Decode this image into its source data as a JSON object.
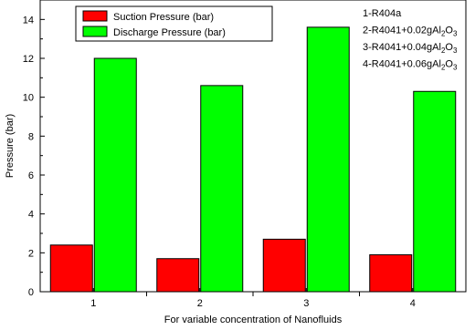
{
  "chart_data": {
    "type": "bar",
    "title": "",
    "xlabel": "For variable concentration of Nanofluids",
    "ylabel": "Pressure (bar)",
    "categories": [
      "1",
      "2",
      "3",
      "4"
    ],
    "ylim": [
      0,
      15
    ],
    "yticks": [
      0,
      2,
      4,
      6,
      8,
      10,
      12,
      14
    ],
    "grid": false,
    "legend_position": "top-left",
    "series": [
      {
        "name": "Suction Pressure (bar)",
        "color": "#ff0000",
        "values": [
          2.4,
          1.7,
          2.7,
          1.9
        ]
      },
      {
        "name": "Discharge Pressure (bar)",
        "color": "#00ff00",
        "values": [
          12.0,
          10.6,
          13.6,
          10.3
        ]
      }
    ],
    "annotations": [
      {
        "text": "1-R404a"
      },
      {
        "parts": [
          [
            "2-R4041+0.02gAl",
            "n"
          ],
          [
            "2",
            "sub"
          ],
          [
            "O",
            "n"
          ],
          [
            "3",
            "sub"
          ]
        ]
      },
      {
        "parts": [
          [
            "3-R4041+0.04gAl",
            "n"
          ],
          [
            "2",
            "sub"
          ],
          [
            "O",
            "n"
          ],
          [
            "3",
            "sub"
          ]
        ]
      },
      {
        "parts": [
          [
            "4-R4041+0.06gAl",
            "n"
          ],
          [
            "2",
            "sub"
          ],
          [
            "O",
            "n"
          ],
          [
            "3",
            "sub"
          ]
        ]
      }
    ]
  }
}
